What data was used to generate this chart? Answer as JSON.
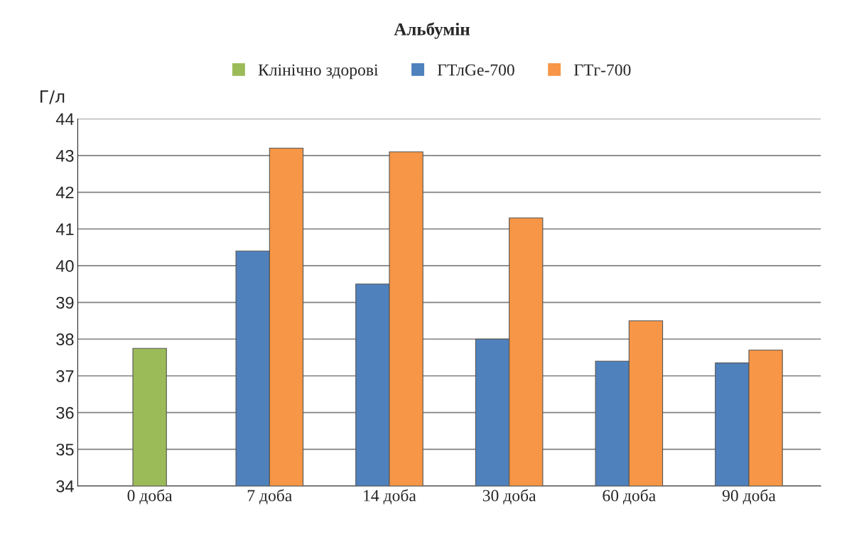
{
  "chart_data": {
    "type": "bar",
    "title": "Альбумін",
    "ylabel": "Г/л",
    "categories": [
      "0 доба",
      "7 доба",
      "14 доба",
      "30 доба",
      "60 доба",
      "90 доба"
    ],
    "series": [
      {
        "name": "Клінічно здорові",
        "color": "#9bbb59",
        "values": [
          37.75,
          null,
          null,
          null,
          null,
          null
        ]
      },
      {
        "name": "ГТлGe-700",
        "color": "#4f81bd",
        "values": [
          null,
          40.4,
          39.5,
          38.0,
          37.4,
          37.35
        ]
      },
      {
        "name": "ГТг-700",
        "color": "#f79646",
        "values": [
          null,
          43.2,
          43.1,
          41.3,
          38.5,
          37.7
        ]
      }
    ],
    "ylim": [
      34,
      44
    ],
    "yticks": [
      34,
      35,
      36,
      37,
      38,
      39,
      40,
      41,
      42,
      43,
      44
    ],
    "grid": "y",
    "legend": "top"
  }
}
